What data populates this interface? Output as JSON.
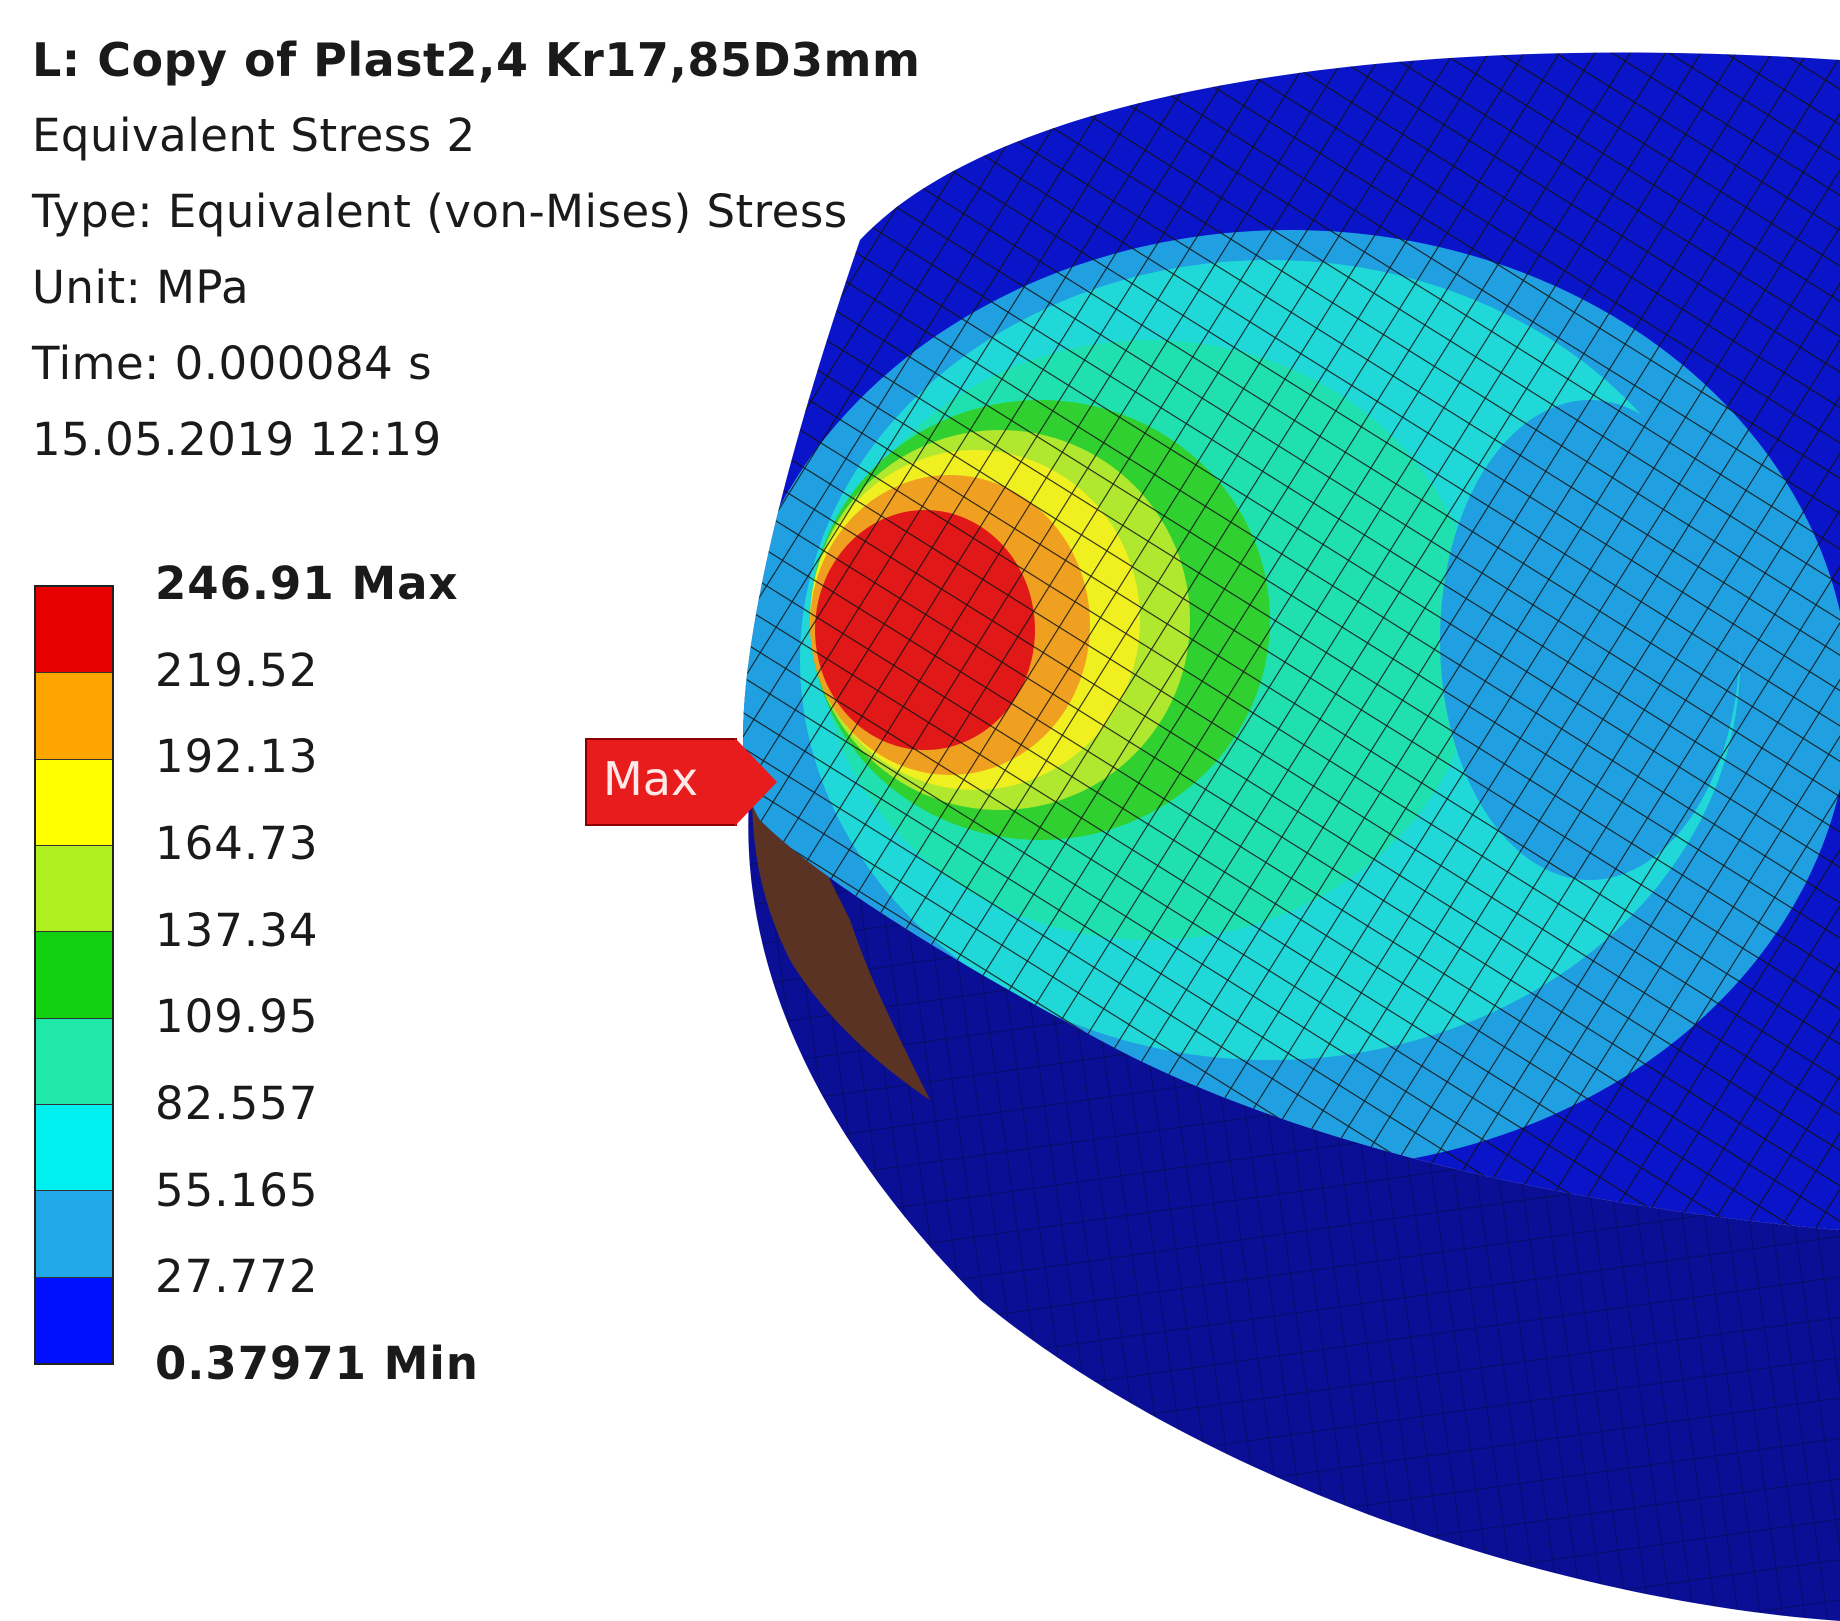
{
  "header": {
    "title": "L: Copy of Plast2,4 Kr17,85D3mm",
    "result_name": "Equivalent Stress 2",
    "type": "Type: Equivalent (von-Mises) Stress",
    "unit": "Unit: MPa",
    "time": "Time: 0.000084 s",
    "timestamp": "15.05.2019 12:19"
  },
  "legend": {
    "labels": [
      "246.91 Max",
      "219.52",
      "192.13",
      "164.73",
      "137.34",
      "109.95",
      "82.557",
      "55.165",
      "27.772",
      "0.37971 Min"
    ],
    "colors": [
      "#e60000",
      "#ffa500",
      "#ffff00",
      "#b0f020",
      "#10d010",
      "#20e8a8",
      "#00f0f0",
      "#20a8e8",
      "#0010ff"
    ]
  },
  "probe": {
    "label": "Max"
  },
  "model": {
    "colors": {
      "outer": "#0a14c8",
      "side": "#0a0f96",
      "light_blue": "#20a0e0",
      "cyan": "#20d8d8",
      "teal": "#20e0b0",
      "green": "#30d030",
      "yellow_green": "#b0e830",
      "yellow": "#f0f020",
      "orange": "#f0a020",
      "red": "#e01818",
      "mesh_line": "#111111"
    }
  }
}
